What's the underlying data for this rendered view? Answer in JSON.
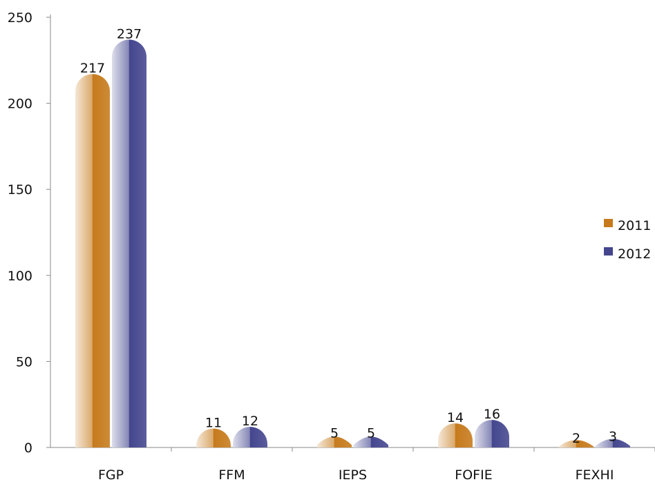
{
  "chart_data": {
    "type": "bar",
    "categories": [
      "FGP",
      "FFM",
      "IEPS",
      "FOFIE",
      "FEXHI"
    ],
    "series": [
      {
        "name": "2011",
        "values": [
          217,
          11,
          5,
          14,
          2
        ],
        "color": "#c67a1c"
      },
      {
        "name": "2012",
        "values": [
          237,
          12,
          5,
          16,
          3
        ],
        "color": "#44468e"
      }
    ],
    "ylim": [
      0,
      250
    ],
    "yticks": [
      0,
      50,
      100,
      150,
      200,
      250
    ],
    "legend_position": "right",
    "grid": false,
    "bar_style": "rounded-top gradient"
  }
}
